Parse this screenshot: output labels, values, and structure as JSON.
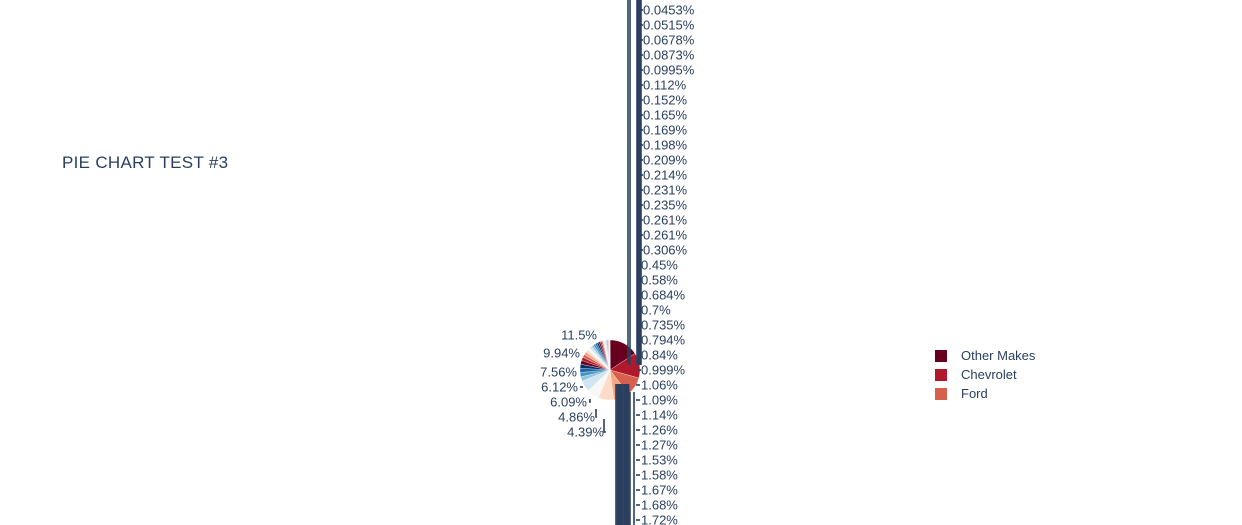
{
  "chart_title": "PIE CHART TEST #3",
  "chart_data": {
    "type": "pie",
    "title": "PIE CHART TEST #3",
    "legend_position": "right",
    "legend": [
      {
        "label": "Other Makes",
        "color": "#67001f"
      },
      {
        "label": "Chevrolet",
        "color": "#b2182b"
      },
      {
        "label": "Ford",
        "color": "#d6604d"
      }
    ],
    "slice_labels": [
      "11.5%",
      "9.94%",
      "7.56%",
      "6.12%",
      "6.09%",
      "4.86%",
      "4.39%",
      "1.72%",
      "1.68%",
      "1.67%",
      "1.58%",
      "1.53%",
      "1.27%",
      "1.26%",
      "1.14%",
      "1.09%",
      "1.06%",
      "0.999%",
      "0.84%",
      "0.794%",
      "0.735%",
      "0.7%",
      "0.684%",
      "0.58%",
      "0.45%",
      "0.306%",
      "0.261%",
      "0.261%",
      "0.235%",
      "0.231%",
      "0.214%",
      "0.209%",
      "0.198%",
      "0.169%",
      "0.165%",
      "0.152%",
      "0.112%",
      "0.0995%",
      "0.0873%",
      "0.0678%",
      "0.0515%",
      "0.0453%"
    ],
    "values": [
      11.5,
      9.94,
      7.56,
      6.12,
      6.09,
      4.86,
      4.39,
      1.72,
      1.68,
      1.67,
      1.58,
      1.53,
      1.27,
      1.26,
      1.14,
      1.09,
      1.06,
      0.999,
      0.84,
      0.794,
      0.735,
      0.7,
      0.684,
      0.58,
      0.45,
      0.306,
      0.261,
      0.261,
      0.235,
      0.231,
      0.214,
      0.209,
      0.198,
      0.169,
      0.165,
      0.152,
      0.112,
      0.0995,
      0.0873,
      0.0678,
      0.0515,
      0.0453
    ],
    "colors": [
      "#67001f",
      "#b2182b",
      "#d6604d",
      "#f4a582",
      "#fddbc7",
      "#f7f7f7",
      "#d1e5f0",
      "#92c5de",
      "#4393c3",
      "#2166ac",
      "#053061",
      "#67001f",
      "#b2182b",
      "#d6604d",
      "#f4a582",
      "#fddbc7",
      "#f7f7f7",
      "#d1e5f0",
      "#92c5de",
      "#4393c3",
      "#2166ac",
      "#053061",
      "#67001f",
      "#b2182b",
      "#d6604d",
      "#f4a582",
      "#fddbc7",
      "#f7f7f7",
      "#d1e5f0",
      "#92c5de",
      "#4393c3",
      "#2166ac",
      "#053061",
      "#67001f",
      "#b2182b",
      "#d6604d",
      "#f4a582",
      "#fddbc7",
      "#f7f7f7",
      "#d1e5f0",
      "#92c5de",
      "#4393c3"
    ],
    "label_color": "#2a3f5f",
    "connector_color": "#2a3f5f"
  }
}
